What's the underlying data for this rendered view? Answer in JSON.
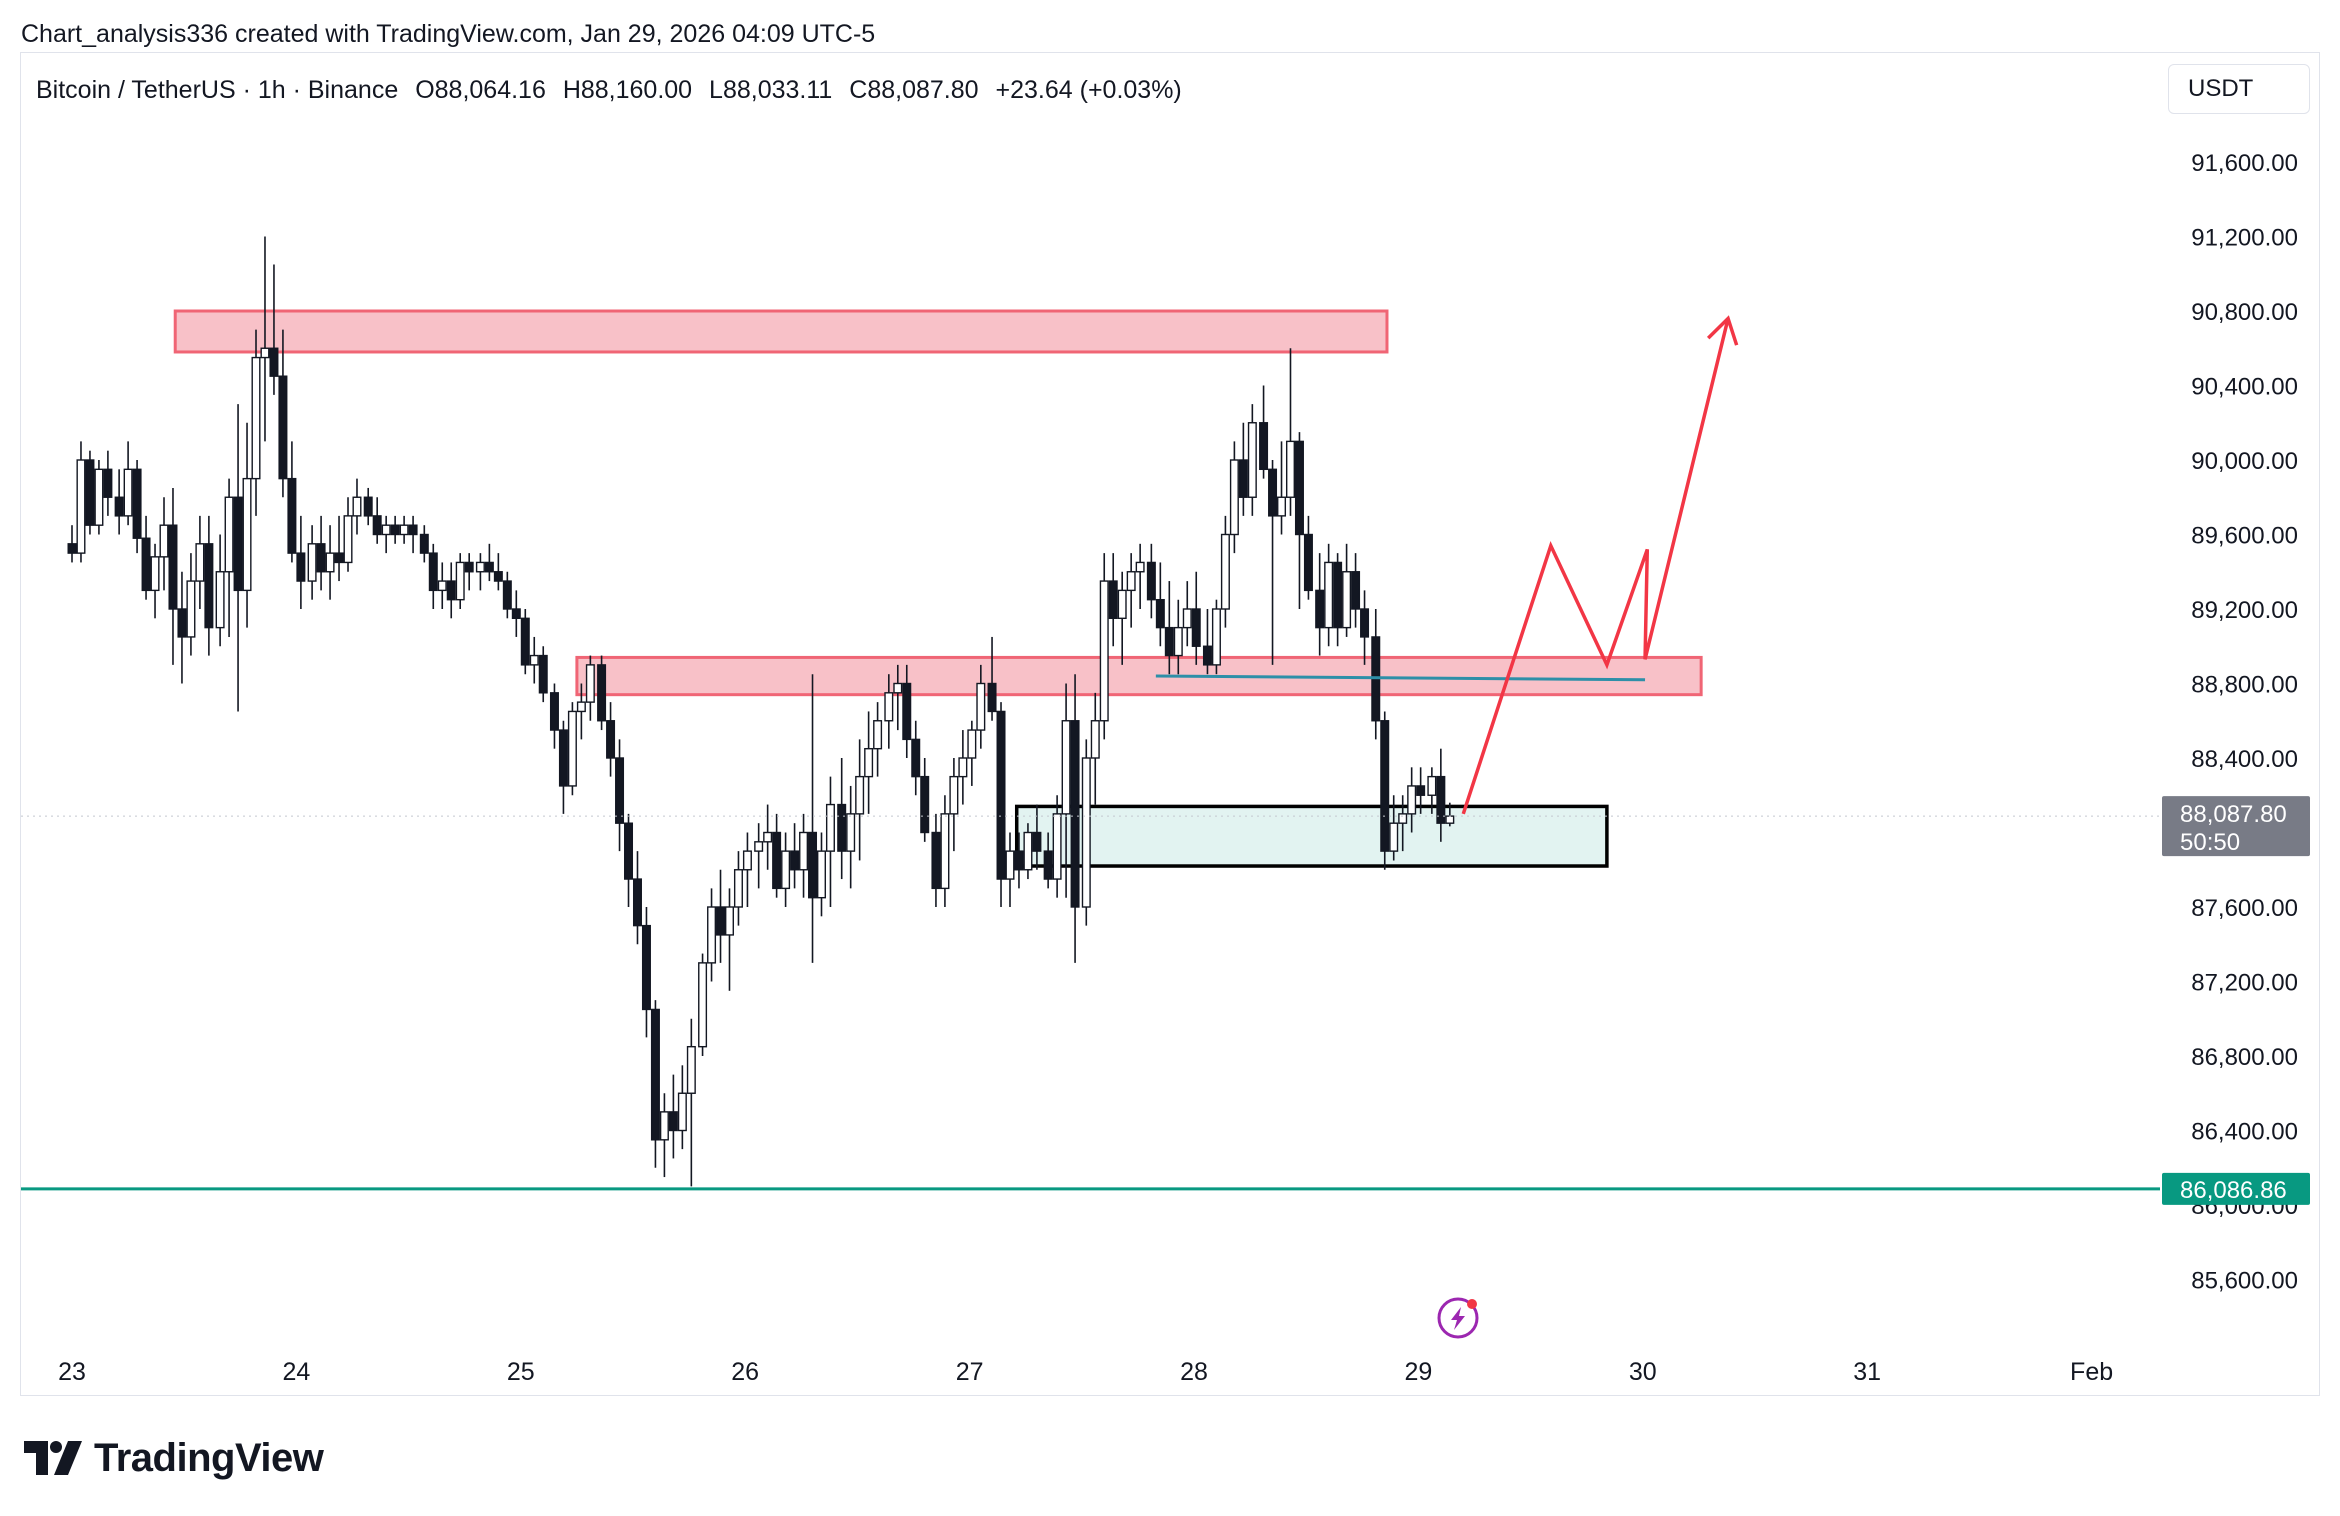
{
  "header": {
    "credit": "Chart_analysis336 created with TradingView.com, Jan 29, 2026 04:09 UTC-5",
    "symbol": "Bitcoin / TetherUS · 1h · Binance",
    "open": "O88,064.16",
    "high": "H88,160.00",
    "low": "L88,033.11",
    "close": "C88,087.80",
    "change": "+23.64 (+0.03%)",
    "currency": "USDT"
  },
  "footer": {
    "logo_text": "TradingView"
  },
  "colors": {
    "up": "#131722",
    "down": "#131722",
    "resistance_fill": "#f8c1c8",
    "resistance_stroke": "#f06575",
    "support_fill": "#e2f3f1",
    "support_stroke": "#000000",
    "arrow": "#f23645",
    "trendline": "#2e8fa8",
    "horizontal_line": "#089981",
    "price_label": "#787b86"
  },
  "chart_data": {
    "type": "candlestick",
    "title": "Bitcoin / TetherUS · 1h · Binance",
    "timeframe": "1h",
    "ylim": [
      85300,
      92100
    ],
    "y_ticks": [
      "91,600.00",
      "91,200.00",
      "90,800.00",
      "90,400.00",
      "90,000.00",
      "89,600.00",
      "89,200.00",
      "88,800.00",
      "88,400.00",
      "87,600.00",
      "87,200.00",
      "86,800.00",
      "86,400.00",
      "86,000.00",
      "85,600.00"
    ],
    "x_ticks": [
      "23",
      "24",
      "25",
      "26",
      "27",
      "28",
      "29",
      "30",
      "31",
      "Feb"
    ],
    "current_price": {
      "value": 88087.8,
      "label": "88,087.80",
      "countdown": "50:50"
    },
    "horizontal_line": {
      "value": 86086.86,
      "label": "86,086.86"
    },
    "zones": [
      {
        "kind": "resistance",
        "x_from": 23.46,
        "x_to": 28.86,
        "y_from": 90580,
        "y_to": 90800
      },
      {
        "kind": "resistance",
        "x_from": 25.25,
        "x_to": 30.26,
        "y_from": 88740,
        "y_to": 88940
      },
      {
        "kind": "support",
        "x_from": 27.21,
        "x_to": 29.84,
        "y_from": 87820,
        "y_to": 88140
      }
    ],
    "trendline": {
      "x1": 27.83,
      "y1": 88840,
      "x2": 30.01,
      "y2": 88820
    },
    "projection": [
      {
        "x": 29.2,
        "y": 88100
      },
      {
        "x": 29.59,
        "y": 89540
      },
      {
        "x": 29.84,
        "y": 88900
      },
      {
        "x": 30.02,
        "y": 89520
      },
      {
        "x": 30.01,
        "y": 88930
      },
      {
        "x": 30.38,
        "y": 90760
      }
    ],
    "candles": [
      [
        23.0,
        89550,
        89650,
        89450,
        89500
      ],
      [
        23.04,
        89500,
        90100,
        89450,
        90000
      ],
      [
        23.08,
        90000,
        90050,
        89600,
        89650
      ],
      [
        23.12,
        89650,
        90000,
        89600,
        89950
      ],
      [
        23.16,
        89950,
        90050,
        89700,
        89800
      ],
      [
        23.21,
        89800,
        89950,
        89600,
        89700
      ],
      [
        23.25,
        89700,
        90100,
        89650,
        89950
      ],
      [
        23.29,
        89950,
        90000,
        89500,
        89580
      ],
      [
        23.33,
        89580,
        89700,
        89250,
        89300
      ],
      [
        23.37,
        89300,
        89550,
        89150,
        89480
      ],
      [
        23.41,
        89480,
        89800,
        89300,
        89650
      ],
      [
        23.45,
        89650,
        89850,
        88900,
        89200
      ],
      [
        23.49,
        89200,
        89400,
        88800,
        89050
      ],
      [
        23.53,
        89050,
        89500,
        88950,
        89350
      ],
      [
        23.57,
        89350,
        89700,
        89200,
        89550
      ],
      [
        23.61,
        89550,
        89700,
        88950,
        89100
      ],
      [
        23.66,
        89100,
        89600,
        89000,
        89400
      ],
      [
        23.7,
        89400,
        89900,
        89050,
        89800
      ],
      [
        23.74,
        89800,
        90300,
        88650,
        89300
      ],
      [
        23.78,
        89300,
        90200,
        89100,
        89900
      ],
      [
        23.82,
        89900,
        90700,
        89700,
        90550
      ],
      [
        23.86,
        90550,
        91200,
        90100,
        90600
      ],
      [
        23.9,
        90600,
        91050,
        90350,
        90450
      ],
      [
        23.94,
        90450,
        90700,
        89800,
        89900
      ],
      [
        23.98,
        89900,
        90100,
        89450,
        89500
      ],
      [
        24.02,
        89500,
        89700,
        89200,
        89350
      ],
      [
        24.07,
        89350,
        89650,
        89250,
        89550
      ],
      [
        24.11,
        89550,
        89700,
        89300,
        89400
      ],
      [
        24.15,
        89400,
        89650,
        89250,
        89500
      ],
      [
        24.19,
        89500,
        89700,
        89350,
        89450
      ],
      [
        24.23,
        89450,
        89800,
        89400,
        89700
      ],
      [
        24.27,
        89700,
        89900,
        89600,
        89800
      ],
      [
        24.32,
        89800,
        89850,
        89650,
        89700
      ],
      [
        24.36,
        89700,
        89800,
        89550,
        89600
      ],
      [
        24.4,
        89600,
        89700,
        89500,
        89650
      ],
      [
        24.44,
        89650,
        89700,
        89550,
        89600
      ],
      [
        24.48,
        89600,
        89700,
        89550,
        89650
      ],
      [
        24.52,
        89650,
        89700,
        89500,
        89600
      ],
      [
        24.57,
        89600,
        89650,
        89450,
        89500
      ],
      [
        24.61,
        89500,
        89550,
        89200,
        89300
      ],
      [
        24.65,
        89300,
        89450,
        89200,
        89350
      ],
      [
        24.69,
        89350,
        89450,
        89150,
        89250
      ],
      [
        24.73,
        89250,
        89500,
        89200,
        89450
      ],
      [
        24.77,
        89450,
        89500,
        89300,
        89400
      ],
      [
        24.82,
        89400,
        89500,
        89300,
        89450
      ],
      [
        24.86,
        89450,
        89550,
        89350,
        89400
      ],
      [
        24.9,
        89400,
        89500,
        89300,
        89350
      ],
      [
        24.94,
        89350,
        89400,
        89150,
        89200
      ],
      [
        24.98,
        89200,
        89300,
        89050,
        89150
      ],
      [
        25.02,
        89150,
        89200,
        88850,
        88900
      ],
      [
        25.06,
        88900,
        89050,
        88800,
        88950
      ],
      [
        25.1,
        88950,
        89000,
        88700,
        88750
      ],
      [
        25.15,
        88750,
        88800,
        88450,
        88550
      ],
      [
        25.19,
        88550,
        88600,
        88100,
        88250
      ],
      [
        25.23,
        88250,
        88700,
        88200,
        88650
      ],
      [
        25.27,
        88650,
        88800,
        88500,
        88700
      ],
      [
        25.31,
        88700,
        88950,
        88600,
        88900
      ],
      [
        25.36,
        88900,
        88950,
        88550,
        88600
      ],
      [
        25.4,
        88600,
        88700,
        88300,
        88400
      ],
      [
        25.44,
        88400,
        88500,
        87900,
        88050
      ],
      [
        25.48,
        88050,
        88100,
        87600,
        87750
      ],
      [
        25.52,
        87750,
        87900,
        87400,
        87500
      ],
      [
        25.56,
        87500,
        87600,
        86900,
        87050
      ],
      [
        25.6,
        87050,
        87100,
        86200,
        86350
      ],
      [
        25.64,
        86350,
        86600,
        86150,
        86500
      ],
      [
        25.68,
        86500,
        86700,
        86250,
        86400
      ],
      [
        25.72,
        86400,
        86750,
        86300,
        86600
      ],
      [
        25.76,
        86600,
        87000,
        86100,
        86850
      ],
      [
        25.81,
        86850,
        87350,
        86800,
        87300
      ],
      [
        25.85,
        87300,
        87700,
        87200,
        87600
      ],
      [
        25.89,
        87600,
        87800,
        87300,
        87450
      ],
      [
        25.93,
        87450,
        87700,
        87150,
        87600
      ],
      [
        25.97,
        87600,
        87900,
        87500,
        87800
      ],
      [
        26.01,
        87800,
        88000,
        87600,
        87900
      ],
      [
        26.06,
        87900,
        88050,
        87700,
        87950
      ],
      [
        26.1,
        87950,
        88150,
        87800,
        88000
      ],
      [
        26.14,
        88000,
        88100,
        87650,
        87700
      ],
      [
        26.18,
        87700,
        88000,
        87600,
        87900
      ],
      [
        26.22,
        87900,
        88050,
        87700,
        87800
      ],
      [
        26.26,
        87800,
        88100,
        87650,
        88000
      ],
      [
        26.3,
        88000,
        88850,
        87300,
        87650
      ],
      [
        26.34,
        87650,
        88000,
        87550,
        87900
      ],
      [
        26.38,
        87900,
        88300,
        87600,
        88150
      ],
      [
        26.43,
        88150,
        88400,
        87750,
        87900
      ],
      [
        26.47,
        87900,
        88250,
        87700,
        88100
      ],
      [
        26.51,
        88100,
        88500,
        87850,
        88300
      ],
      [
        26.55,
        88300,
        88650,
        88100,
        88450
      ],
      [
        26.59,
        88450,
        88700,
        88300,
        88600
      ],
      [
        26.64,
        88600,
        88850,
        88450,
        88750
      ],
      [
        26.68,
        88750,
        88900,
        88550,
        88800
      ],
      [
        26.72,
        88800,
        88900,
        88400,
        88500
      ],
      [
        26.76,
        88500,
        88600,
        88200,
        88300
      ],
      [
        26.8,
        88300,
        88400,
        87950,
        88000
      ],
      [
        26.85,
        88000,
        88100,
        87600,
        87700
      ],
      [
        26.89,
        87700,
        88200,
        87600,
        88100
      ],
      [
        26.93,
        88100,
        88400,
        87900,
        88300
      ],
      [
        26.97,
        88300,
        88550,
        88150,
        88400
      ],
      [
        27.01,
        88400,
        88600,
        88250,
        88550
      ],
      [
        27.05,
        88550,
        88900,
        88450,
        88800
      ],
      [
        27.1,
        88800,
        89050,
        88600,
        88650
      ],
      [
        27.14,
        88650,
        88700,
        87600,
        87750
      ],
      [
        27.18,
        87750,
        88000,
        87600,
        87900
      ],
      [
        27.22,
        87900,
        88000,
        87700,
        87800
      ],
      [
        27.26,
        87800,
        88050,
        87750,
        88000
      ],
      [
        27.3,
        88000,
        88150,
        87800,
        87900
      ],
      [
        27.35,
        87900,
        88000,
        87700,
        87750
      ],
      [
        27.39,
        87750,
        88200,
        87650,
        88100
      ],
      [
        27.43,
        88100,
        88800,
        87650,
        88600
      ],
      [
        27.47,
        88600,
        88850,
        87300,
        87600
      ],
      [
        27.52,
        87600,
        88500,
        87500,
        88400
      ],
      [
        27.56,
        88400,
        88750,
        88150,
        88600
      ],
      [
        27.6,
        88600,
        89500,
        88500,
        89350
      ],
      [
        27.64,
        89350,
        89500,
        89000,
        89150
      ],
      [
        27.68,
        89150,
        89400,
        88900,
        89300
      ],
      [
        27.72,
        89300,
        89500,
        89100,
        89400
      ],
      [
        27.76,
        89400,
        89550,
        89200,
        89450
      ],
      [
        27.81,
        89450,
        89550,
        89150,
        89250
      ],
      [
        27.85,
        89250,
        89450,
        89000,
        89100
      ],
      [
        27.89,
        89100,
        89350,
        88850,
        88950
      ],
      [
        27.93,
        88950,
        89250,
        88850,
        89100
      ],
      [
        27.97,
        89100,
        89350,
        89000,
        89200
      ],
      [
        28.01,
        89200,
        89400,
        88900,
        89000
      ],
      [
        28.06,
        89000,
        89200,
        88850,
        88900
      ],
      [
        28.1,
        88900,
        89250,
        88850,
        89200
      ],
      [
        28.14,
        89200,
        89700,
        89100,
        89600
      ],
      [
        28.18,
        89600,
        90100,
        89500,
        90000
      ],
      [
        28.22,
        90000,
        90200,
        89700,
        89800
      ],
      [
        28.26,
        89800,
        90300,
        89700,
        90200
      ],
      [
        28.31,
        90200,
        90400,
        89900,
        89950
      ],
      [
        28.35,
        89950,
        90000,
        88900,
        89700
      ],
      [
        28.39,
        89700,
        90100,
        89600,
        89800
      ],
      [
        28.43,
        89800,
        90600,
        89700,
        90100
      ],
      [
        28.47,
        90100,
        90150,
        89200,
        89600
      ],
      [
        28.51,
        89600,
        89700,
        89250,
        89300
      ],
      [
        28.56,
        89300,
        89500,
        88950,
        89100
      ],
      [
        28.6,
        89100,
        89550,
        89000,
        89450
      ],
      [
        28.64,
        89450,
        89500,
        89000,
        89100
      ],
      [
        28.68,
        89100,
        89550,
        89050,
        89400
      ],
      [
        28.72,
        89400,
        89500,
        89100,
        89200
      ],
      [
        28.76,
        89200,
        89300,
        88900,
        89050
      ],
      [
        28.81,
        89050,
        89200,
        88500,
        88600
      ],
      [
        28.85,
        88600,
        88650,
        87800,
        87900
      ],
      [
        28.89,
        87900,
        88200,
        87850,
        88050
      ],
      [
        28.93,
        88050,
        88200,
        87900,
        88100
      ],
      [
        28.97,
        88100,
        88350,
        88000,
        88250
      ],
      [
        29.01,
        88250,
        88350,
        88100,
        88200
      ],
      [
        29.06,
        88200,
        88350,
        88100,
        88300
      ],
      [
        29.1,
        88300,
        88450,
        87950,
        88050
      ],
      [
        29.14,
        88050,
        88160,
        88033,
        88088
      ]
    ]
  }
}
